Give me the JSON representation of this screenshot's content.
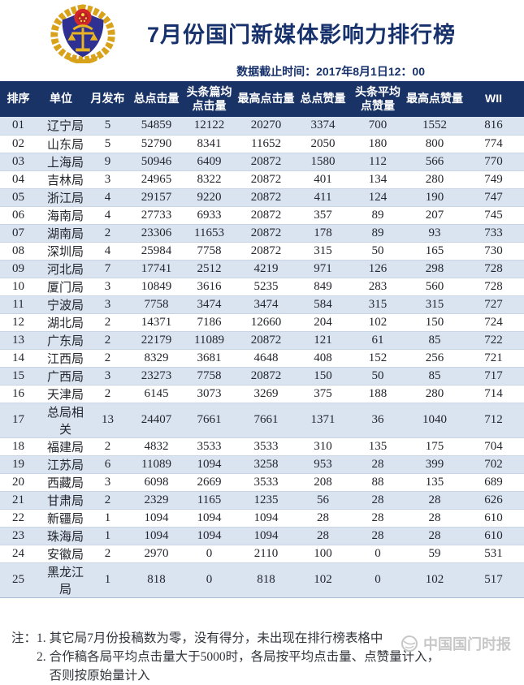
{
  "header": {
    "title": "7月份国门新媒体影响力排行榜",
    "timestamp_label": "数据截止时间：2017年8月1日12：00",
    "logo_name": "inspection-quarantine-emblem"
  },
  "table": {
    "column_keys": [
      "rank",
      "unit",
      "monthly-posts",
      "total-clicks",
      "headline-avg-clicks",
      "max-clicks",
      "total-likes",
      "headline-avg-likes",
      "max-likes",
      "wii"
    ],
    "columns": [
      "排序",
      "单位",
      "月发布",
      "总点击量",
      "头条篇均\n点击量",
      "最高点击量",
      "总点赞量",
      "头条平均\n点赞量",
      "最高点赞量",
      "WII"
    ],
    "rows": [
      [
        "01",
        "辽宁局",
        "5",
        "54859",
        "12122",
        "20270",
        "3374",
        "700",
        "1552",
        "816"
      ],
      [
        "02",
        "山东局",
        "5",
        "52790",
        "8341",
        "11652",
        "2050",
        "180",
        "800",
        "774"
      ],
      [
        "03",
        "上海局",
        "9",
        "50946",
        "6409",
        "20872",
        "1580",
        "112",
        "566",
        "770"
      ],
      [
        "04",
        "吉林局",
        "3",
        "24965",
        "8322",
        "20872",
        "401",
        "134",
        "280",
        "749"
      ],
      [
        "05",
        "浙江局",
        "4",
        "29157",
        "9220",
        "20872",
        "411",
        "124",
        "190",
        "747"
      ],
      [
        "06",
        "海南局",
        "4",
        "27733",
        "6933",
        "20872",
        "357",
        "89",
        "207",
        "745"
      ],
      [
        "07",
        "湖南局",
        "2",
        "23306",
        "11653",
        "20872",
        "178",
        "89",
        "93",
        "733"
      ],
      [
        "08",
        "深圳局",
        "4",
        "25984",
        "7758",
        "20872",
        "315",
        "50",
        "165",
        "730"
      ],
      [
        "09",
        "河北局",
        "7",
        "17741",
        "2512",
        "4219",
        "971",
        "126",
        "298",
        "728"
      ],
      [
        "10",
        "厦门局",
        "3",
        "10849",
        "3616",
        "5235",
        "849",
        "283",
        "560",
        "728"
      ],
      [
        "11",
        "宁波局",
        "3",
        "7758",
        "3474",
        "3474",
        "584",
        "315",
        "315",
        "727"
      ],
      [
        "12",
        "湖北局",
        "2",
        "14371",
        "7186",
        "12660",
        "204",
        "102",
        "150",
        "724"
      ],
      [
        "13",
        "广东局",
        "2",
        "22179",
        "11089",
        "20872",
        "121",
        "61",
        "85",
        "722"
      ],
      [
        "14",
        "江西局",
        "2",
        "8329",
        "3681",
        "4648",
        "408",
        "152",
        "256",
        "721"
      ],
      [
        "15",
        "广西局",
        "3",
        "23273",
        "7758",
        "20872",
        "150",
        "50",
        "85",
        "717"
      ],
      [
        "16",
        "天津局",
        "2",
        "6145",
        "3073",
        "3269",
        "375",
        "188",
        "280",
        "714"
      ],
      [
        "17",
        "总局相关",
        "13",
        "24407",
        "7661",
        "7661",
        "1371",
        "36",
        "1040",
        "712"
      ],
      [
        "18",
        "福建局",
        "2",
        "4832",
        "3533",
        "3533",
        "310",
        "135",
        "175",
        "704"
      ],
      [
        "19",
        "江苏局",
        "6",
        "11089",
        "1094",
        "3258",
        "953",
        "28",
        "399",
        "702"
      ],
      [
        "20",
        "西藏局",
        "3",
        "6098",
        "2669",
        "3533",
        "208",
        "88",
        "135",
        "689"
      ],
      [
        "21",
        "甘肃局",
        "2",
        "2329",
        "1165",
        "1235",
        "56",
        "28",
        "28",
        "626"
      ],
      [
        "22",
        "新疆局",
        "1",
        "1094",
        "1094",
        "1094",
        "28",
        "28",
        "28",
        "610"
      ],
      [
        "23",
        "珠海局",
        "1",
        "1094",
        "1094",
        "1094",
        "28",
        "28",
        "28",
        "610"
      ],
      [
        "24",
        "安徽局",
        "2",
        "2970",
        "0",
        "2110",
        "100",
        "0",
        "59",
        "531"
      ],
      [
        "25",
        "黑龙江局",
        "1",
        "818",
        "0",
        "818",
        "102",
        "0",
        "102",
        "517"
      ]
    ]
  },
  "notes": {
    "label": "注：",
    "items": [
      {
        "num": "1.",
        "text": "其它局7月份投稿数为零，没有得分，未出现在排行榜表格中"
      },
      {
        "num": "2.",
        "text": "合作稿各局平均点击量大于5000时，各局按平均点击量、点赞量计入，\n否则按原始量计入"
      }
    ]
  },
  "watermark": {
    "text": "中国国门时报",
    "icon": "globe-icon"
  }
}
